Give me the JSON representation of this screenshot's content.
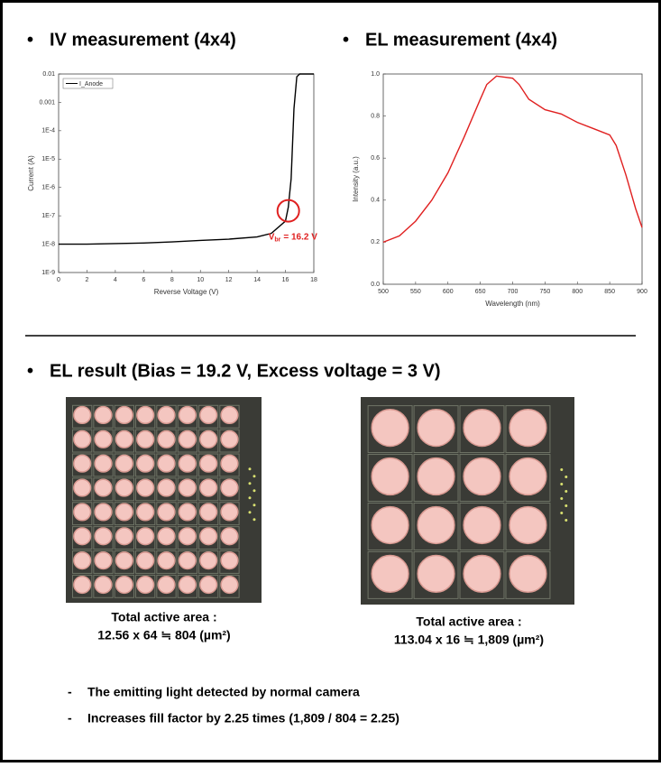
{
  "chart_data": [
    {
      "type": "line",
      "title": "IV measurement (4x4)",
      "xlabel": "Reverse Voltage (V)",
      "ylabel": "Current (A)",
      "log_y": true,
      "legend": "upper left",
      "x": [
        0,
        2,
        4,
        6,
        8,
        10,
        12,
        14,
        15,
        16,
        16.2,
        16.4,
        16.6,
        16.8,
        17,
        18
      ],
      "series": [
        {
          "name": "I_Anode",
          "color": "#000000",
          "values": [
            1e-08,
            1e-08,
            1.05e-08,
            1.1e-08,
            1.2e-08,
            1.35e-08,
            1.5e-08,
            1.8e-08,
            2.4e-08,
            6.5e-08,
            2e-07,
            2e-06,
            0.0006,
            0.008,
            0.01,
            0.01
          ]
        }
      ],
      "xlim": [
        0,
        18
      ],
      "xticks": [
        0,
        2,
        4,
        6,
        8,
        10,
        12,
        14,
        16,
        18
      ],
      "ylim": [
        1e-09,
        0.01
      ],
      "yticks": [
        {
          "value": 1e-09,
          "label": "1E-9"
        },
        {
          "value": 1e-08,
          "label": "1E-8"
        },
        {
          "value": 1e-07,
          "label": "1E-7"
        },
        {
          "value": 1e-06,
          "label": "1E-6"
        },
        {
          "value": 1e-05,
          "label": "1E-5"
        },
        {
          "value": 0.0001,
          "label": "1E-4"
        },
        0.001,
        0.01
      ],
      "annotations": [
        {
          "text": "V",
          "sub": "br",
          "tail": "= 16.2 V",
          "x": 16.2,
          "y": 1.5e-07,
          "color": "#e02020"
        }
      ]
    },
    {
      "type": "line",
      "title": "EL measurement (4x4)",
      "xlabel": "Wavelength (nm)",
      "ylabel": "Intensity (a.u.)",
      "x": [
        500,
        525,
        550,
        575,
        600,
        625,
        650,
        660,
        675,
        700,
        710,
        725,
        750,
        775,
        800,
        825,
        850,
        860,
        875,
        890,
        900
      ],
      "values": [
        0.2,
        0.23,
        0.3,
        0.4,
        0.53,
        0.7,
        0.88,
        0.95,
        0.99,
        0.98,
        0.95,
        0.88,
        0.83,
        0.81,
        0.77,
        0.74,
        0.71,
        0.66,
        0.52,
        0.36,
        0.27
      ],
      "color": "#e02020",
      "xlim": [
        500,
        900
      ],
      "xticks": [
        500,
        550,
        600,
        650,
        700,
        750,
        800,
        850,
        900
      ],
      "ylim": [
        0,
        1
      ],
      "yticks": [
        {
          "value": 0,
          "label": "0.0"
        },
        0.2,
        0.4,
        0.6,
        0.8,
        {
          "value": 1,
          "label": "1.0"
        }
      ]
    }
  ],
  "el_result": {
    "heading": "EL result (Bias = 19.2 V, Excess voltage = 3 V)",
    "images": [
      {
        "caption_title": "Total active area :",
        "caption_value": "12.56 x 64 ≒ 804 (µm²)"
      },
      {
        "caption_title": "Total active area :",
        "caption_value": "113.04 x 16 ≒ 1,809 (µm²)"
      }
    ]
  },
  "notes": [
    "The emitting light detected by normal camera",
    "Increases fill factor by 2.25 times (1,809 / 804 = 2.25)"
  ]
}
